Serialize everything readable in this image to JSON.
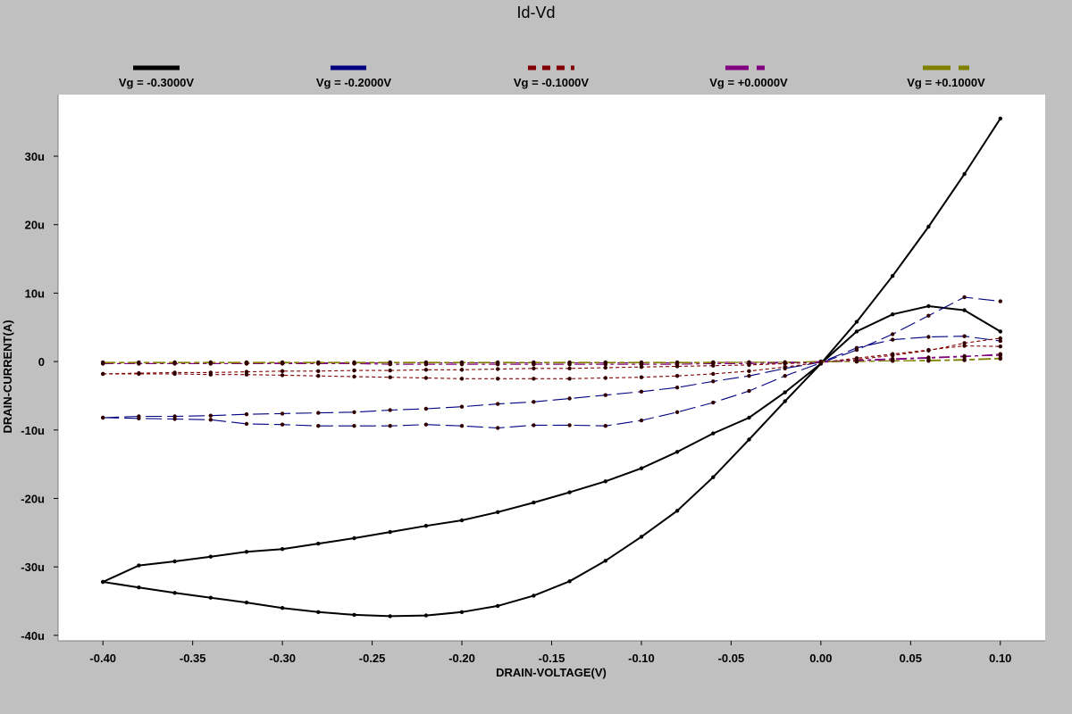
{
  "chart_data": {
    "type": "line",
    "title": "Id-Vd",
    "xlabel": "DRAIN-VOLTAGE(V)",
    "ylabel": "DRAIN-CURRENT(A)",
    "xlim": [
      -0.425,
      0.125
    ],
    "ylim": [
      -40.8,
      39.0
    ],
    "x_ticks": [
      -0.4,
      -0.35,
      -0.3,
      -0.25,
      -0.2,
      -0.15,
      -0.1,
      -0.05,
      0.0,
      0.05,
      0.1
    ],
    "x_tick_labels": [
      "-0.40",
      "-0.35",
      "-0.30",
      "-0.25",
      "-0.20",
      "-0.15",
      "-0.10",
      "-0.05",
      "0.00",
      "0.05",
      "0.10"
    ],
    "y_ticks": [
      30,
      20,
      10,
      0,
      -10,
      -20,
      -30,
      -40
    ],
    "y_tick_labels": [
      "30u",
      "20u",
      "10u",
      "0",
      "-10u",
      "-20u",
      "-30u",
      "-40u"
    ],
    "grid": false,
    "legend_position": "top",
    "series": [
      {
        "name": "Vg = -0.3000V",
        "color": "#000000",
        "dash": "none",
        "stroke": 2,
        "curves": [
          {
            "x": [
              -0.4,
              -0.38,
              -0.36,
              -0.34,
              -0.32,
              -0.3,
              -0.28,
              -0.26,
              -0.24,
              -0.22,
              -0.2,
              -0.18,
              -0.16,
              -0.14,
              -0.12,
              -0.1,
              -0.08,
              -0.06,
              -0.04,
              -0.02,
              0.0,
              0.02,
              0.04,
              0.06,
              0.08,
              0.1
            ],
            "y": [
              -32.2,
              -33.0,
              -33.8,
              -34.5,
              -35.2,
              -36.0,
              -36.6,
              -37.0,
              -37.2,
              -37.1,
              -36.6,
              -35.7,
              -34.2,
              -32.1,
              -29.1,
              -25.6,
              -21.8,
              -16.9,
              -11.4,
              -5.8,
              -0.3,
              5.8,
              12.5,
              19.7,
              27.4,
              35.5
            ]
          },
          {
            "x": [
              -0.4,
              -0.38,
              -0.36,
              -0.34,
              -0.32,
              -0.3,
              -0.28,
              -0.26,
              -0.24,
              -0.22,
              -0.2,
              -0.18,
              -0.16,
              -0.14,
              -0.12,
              -0.1,
              -0.08,
              -0.06,
              -0.04,
              -0.02,
              0.0,
              0.02,
              0.04,
              0.06,
              0.08,
              0.1
            ],
            "y": [
              -32.2,
              -29.8,
              -29.2,
              -28.5,
              -27.8,
              -27.4,
              -26.6,
              -25.8,
              -24.9,
              -24.0,
              -23.2,
              -22.0,
              -20.6,
              -19.1,
              -17.5,
              -15.6,
              -13.2,
              -10.5,
              -8.2,
              -4.5,
              -0.3,
              4.4,
              6.9,
              8.1,
              7.5,
              4.4
            ]
          }
        ]
      },
      {
        "name": "Vg = -0.2000V",
        "color": "#000080",
        "dash": "18,6",
        "stroke": 1.1,
        "curves": [
          {
            "x": [
              -0.4,
              -0.38,
              -0.36,
              -0.34,
              -0.32,
              -0.3,
              -0.28,
              -0.26,
              -0.24,
              -0.22,
              -0.2,
              -0.18,
              -0.16,
              -0.14,
              -0.12,
              -0.1,
              -0.08,
              -0.06,
              -0.04,
              -0.02,
              0.0,
              0.02,
              0.04,
              0.06,
              0.08,
              0.1
            ],
            "y": [
              -8.2,
              -8.3,
              -8.4,
              -8.5,
              -9.1,
              -9.2,
              -9.4,
              -9.4,
              -9.4,
              -9.2,
              -9.4,
              -9.7,
              -9.3,
              -9.3,
              -9.4,
              -8.6,
              -7.4,
              -6.0,
              -4.3,
              -2.1,
              -0.2,
              1.7,
              4.0,
              6.7,
              9.4,
              8.8
            ]
          },
          {
            "x": [
              -0.4,
              -0.38,
              -0.36,
              -0.34,
              -0.32,
              -0.3,
              -0.28,
              -0.26,
              -0.24,
              -0.22,
              -0.2,
              -0.18,
              -0.16,
              -0.14,
              -0.12,
              -0.1,
              -0.08,
              -0.06,
              -0.04,
              -0.02,
              0.0,
              0.02,
              0.04,
              0.06,
              0.08,
              0.1
            ],
            "y": [
              -8.2,
              -8.0,
              -8.0,
              -7.9,
              -7.7,
              -7.6,
              -7.5,
              -7.4,
              -7.1,
              -6.9,
              -6.6,
              -6.2,
              -5.9,
              -5.4,
              -4.9,
              -4.4,
              -3.8,
              -2.9,
              -2.1,
              -1.0,
              -0.1,
              2.0,
              3.2,
              3.6,
              3.7,
              3.0
            ]
          }
        ]
      },
      {
        "name": "Vg = -0.1000V",
        "color": "#800000",
        "dash": "4,3",
        "stroke": 1.1,
        "curves": [
          {
            "x": [
              -0.4,
              -0.38,
              -0.36,
              -0.34,
              -0.32,
              -0.3,
              -0.28,
              -0.26,
              -0.24,
              -0.22,
              -0.2,
              -0.18,
              -0.16,
              -0.14,
              -0.12,
              -0.1,
              -0.08,
              -0.06,
              -0.04,
              -0.02,
              0.0,
              0.02,
              0.04,
              0.06,
              0.08,
              0.1
            ],
            "y": [
              -1.8,
              -1.8,
              -1.8,
              -1.9,
              -1.9,
              -2.0,
              -2.1,
              -2.2,
              -2.3,
              -2.4,
              -2.5,
              -2.5,
              -2.5,
              -2.5,
              -2.4,
              -2.3,
              -2.1,
              -1.8,
              -1.4,
              -0.8,
              -0.1,
              0.5,
              1.1,
              1.7,
              2.3,
              2.2
            ]
          },
          {
            "x": [
              -0.4,
              -0.38,
              -0.36,
              -0.34,
              -0.32,
              -0.3,
              -0.28,
              -0.26,
              -0.24,
              -0.22,
              -0.2,
              -0.18,
              -0.16,
              -0.14,
              -0.12,
              -0.1,
              -0.08,
              -0.06,
              -0.04,
              -0.02,
              0.0,
              0.02,
              0.04,
              0.06,
              0.08,
              0.1
            ],
            "y": [
              -1.8,
              -1.7,
              -1.6,
              -1.6,
              -1.5,
              -1.4,
              -1.4,
              -1.3,
              -1.3,
              -1.2,
              -1.2,
              -1.1,
              -1.0,
              -1.0,
              -0.9,
              -0.8,
              -0.7,
              -0.6,
              -0.5,
              -0.3,
              -0.1,
              0.3,
              0.9,
              1.6,
              2.7,
              3.4
            ]
          }
        ]
      },
      {
        "name": "Vg = +0.0000V",
        "color": "#800080",
        "dash": "12,4,4,4",
        "stroke": 1.1,
        "curves": [
          {
            "x": [
              -0.4,
              -0.38,
              -0.36,
              -0.34,
              -0.32,
              -0.3,
              -0.28,
              -0.26,
              -0.24,
              -0.22,
              -0.2,
              -0.18,
              -0.16,
              -0.14,
              -0.12,
              -0.1,
              -0.08,
              -0.06,
              -0.04,
              -0.02,
              0.0,
              0.02,
              0.04,
              0.06,
              0.08,
              0.1
            ],
            "y": [
              -0.3,
              -0.3,
              -0.3,
              -0.3,
              -0.3,
              -0.3,
              -0.3,
              -0.3,
              -0.4,
              -0.4,
              -0.4,
              -0.4,
              -0.4,
              -0.4,
              -0.4,
              -0.4,
              -0.4,
              -0.3,
              -0.3,
              -0.2,
              -0.1,
              0.1,
              0.3,
              0.5,
              0.7,
              1.1
            ]
          },
          {
            "x": [
              -0.4,
              -0.38,
              -0.36,
              -0.34,
              -0.32,
              -0.3,
              -0.28,
              -0.26,
              -0.24,
              -0.22,
              -0.2,
              -0.18,
              -0.16,
              -0.14,
              -0.12,
              -0.1,
              -0.08,
              -0.06,
              -0.04,
              -0.02,
              0.0,
              0.02,
              0.04,
              0.06,
              0.08,
              0.1
            ],
            "y": [
              -0.3,
              -0.3,
              -0.3,
              -0.3,
              -0.3,
              -0.2,
              -0.2,
              -0.2,
              -0.2,
              -0.2,
              -0.2,
              -0.2,
              -0.2,
              -0.2,
              -0.2,
              -0.2,
              -0.2,
              -0.1,
              -0.1,
              -0.1,
              0.0,
              0.2,
              0.4,
              0.6,
              0.8,
              0.9
            ]
          }
        ]
      },
      {
        "name": "Vg = +0.1000V",
        "color": "#808000",
        "dash": "14,4,6,4",
        "stroke": 1.1,
        "curves": [
          {
            "x": [
              -0.4,
              -0.38,
              -0.36,
              -0.34,
              -0.32,
              -0.3,
              -0.28,
              -0.26,
              -0.24,
              -0.22,
              -0.2,
              -0.18,
              -0.16,
              -0.14,
              -0.12,
              -0.1,
              -0.08,
              -0.06,
              -0.04,
              -0.02,
              0.0,
              0.02,
              0.04,
              0.06,
              0.08,
              0.1
            ],
            "y": [
              -0.1,
              -0.1,
              -0.1,
              -0.1,
              -0.1,
              -0.1,
              -0.1,
              -0.1,
              -0.1,
              -0.1,
              -0.1,
              -0.1,
              -0.1,
              -0.1,
              -0.1,
              -0.1,
              -0.1,
              -0.1,
              -0.1,
              -0.1,
              0.0,
              0.0,
              0.1,
              0.1,
              0.2,
              0.4
            ]
          },
          {
            "x": [
              -0.4,
              -0.38,
              -0.36,
              -0.34,
              -0.32,
              -0.3,
              -0.28,
              -0.26,
              -0.24,
              -0.22,
              -0.2,
              -0.18,
              -0.16,
              -0.14,
              -0.12,
              -0.1,
              -0.08,
              -0.06,
              -0.04,
              -0.02,
              0.0,
              0.02,
              0.04,
              0.06,
              0.08,
              0.1
            ],
            "y": [
              -0.2,
              -0.2,
              -0.2,
              -0.2,
              -0.2,
              -0.2,
              -0.2,
              -0.2,
              -0.2,
              -0.2,
              -0.2,
              -0.2,
              -0.2,
              -0.2,
              -0.2,
              -0.2,
              -0.2,
              -0.2,
              -0.1,
              -0.1,
              0.0,
              0.0,
              0.1,
              0.2,
              0.3,
              0.5
            ]
          }
        ]
      }
    ]
  }
}
